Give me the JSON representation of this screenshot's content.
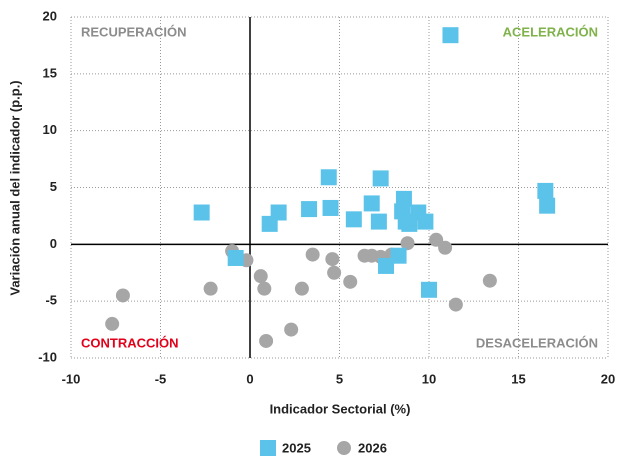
{
  "chart_data": {
    "type": "scatter",
    "xlabel": "Indicador Sectorial (%)",
    "ylabel": "Variación anual del indicador (p.p.)",
    "xlim": [
      -10,
      20
    ],
    "xticks": [
      -10,
      -5,
      0,
      5,
      10,
      15,
      20
    ],
    "ylim": [
      -10,
      20
    ],
    "yticks": [
      -10,
      -5,
      0,
      5,
      10,
      15,
      20
    ],
    "grid": true,
    "annotations": [
      {
        "text": "RECUPERACIÓN",
        "color": "#8c8c8c"
      },
      {
        "text": "ACELERACIÓN",
        "color": "#7fb24a"
      },
      {
        "text": "CONTRACCIÓN",
        "color": "#e2001a"
      },
      {
        "text": "DESACELERACIÓN",
        "color": "#8c8c8c"
      }
    ],
    "series": [
      {
        "name": "2025",
        "color": "#5bc3ea",
        "marker": "square",
        "x": [
          11.2,
          4.4,
          7.3,
          -2.7,
          1.1,
          1.6,
          3.3,
          4.5,
          5.8,
          6.8,
          7.2,
          8.6,
          8.5,
          8.7,
          8.9,
          9.4,
          9.8,
          7.6,
          8.3,
          10.0,
          -0.8,
          16.5,
          16.6
        ],
        "values": [
          18.4,
          5.9,
          5.8,
          2.8,
          1.8,
          2.8,
          3.1,
          3.2,
          2.2,
          3.6,
          2.0,
          4.0,
          2.9,
          2.0,
          1.8,
          2.8,
          2.0,
          -1.9,
          -1.0,
          -4.0,
          -1.2,
          4.7,
          3.4
        ]
      },
      {
        "name": "2026",
        "color": "#a6a6a6",
        "marker": "circle",
        "x": [
          -7.7,
          -7.1,
          -2.2,
          -1.0,
          -0.2,
          0.6,
          0.8,
          0.9,
          2.3,
          2.9,
          3.5,
          4.6,
          4.7,
          5.6,
          6.4,
          6.8,
          7.3,
          7.9,
          8.8,
          10.4,
          10.9,
          11.5,
          13.4
        ],
        "values": [
          -7.0,
          -4.5,
          -3.9,
          -0.6,
          -1.4,
          -2.8,
          -3.9,
          -8.5,
          -7.5,
          -3.9,
          -0.9,
          -1.3,
          -2.5,
          -3.3,
          -1.0,
          -1.0,
          -1.1,
          -0.9,
          0.1,
          0.4,
          -0.3,
          -5.3,
          -3.2
        ]
      }
    ]
  }
}
